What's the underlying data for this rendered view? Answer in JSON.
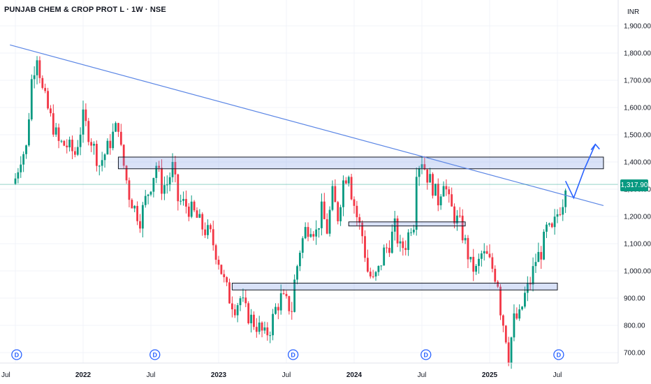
{
  "header": {
    "title": "PUNJAB CHEM & CROP PROT L · 1W · NSE"
  },
  "chart_data": {
    "type": "candlestick",
    "currency": "INR",
    "current_price": "1,317.90",
    "y_ticks": [
      "1,900.00",
      "1,800.00",
      "1,700.00",
      "1,600.00",
      "1,500.00",
      "1,400.00",
      "1,300.00",
      "1,200.00",
      "1,100.00",
      "1,000.00",
      "900.00",
      "800.00",
      "700.00"
    ],
    "y_values": [
      1900,
      1800,
      1700,
      1600,
      1500,
      1400,
      1300,
      1200,
      1100,
      1000,
      900,
      800,
      700
    ],
    "x_ticks": [
      {
        "label": "Jul",
        "index": 0
      },
      {
        "label": "2022",
        "index": 25
      },
      {
        "label": "Jul",
        "index": 50
      },
      {
        "label": "2023",
        "index": 75
      },
      {
        "label": "Jul",
        "index": 100
      },
      {
        "label": "2024",
        "index": 125
      },
      {
        "label": "Jul",
        "index": 150
      },
      {
        "label": "2025",
        "index": 175
      },
      {
        "label": "Jul",
        "index": 200
      }
    ],
    "dividend_markers": [
      {
        "label": "D",
        "index": 1
      },
      {
        "label": "D",
        "index": 52
      },
      {
        "label": "D",
        "index": 103
      },
      {
        "label": "D",
        "index": 152
      },
      {
        "label": "D",
        "index": 201
      }
    ],
    "anchors": [
      [
        0,
        1340
      ],
      [
        2,
        1420
      ],
      [
        4,
        1450
      ],
      [
        6,
        1700
      ],
      [
        8,
        1800
      ],
      [
        10,
        1660
      ],
      [
        13,
        1560
      ],
      [
        16,
        1470
      ],
      [
        19,
        1460
      ],
      [
        22,
        1430
      ],
      [
        25,
        1560
      ],
      [
        28,
        1480
      ],
      [
        31,
        1390
      ],
      [
        34,
        1450
      ],
      [
        36,
        1500
      ],
      [
        38,
        1540
      ],
      [
        39,
        1440
      ],
      [
        42,
        1280
      ],
      [
        44,
        1230
      ],
      [
        46,
        1190
      ],
      [
        48,
        1260
      ],
      [
        50,
        1320
      ],
      [
        52,
        1390
      ],
      [
        54,
        1310
      ],
      [
        56,
        1320
      ],
      [
        58,
        1380
      ],
      [
        60,
        1260
      ],
      [
        63,
        1240
      ],
      [
        66,
        1210
      ],
      [
        69,
        1160
      ],
      [
        72,
        1130
      ],
      [
        75,
        1040
      ],
      [
        77,
        960
      ],
      [
        79,
        900
      ],
      [
        81,
        870
      ],
      [
        83,
        900
      ],
      [
        85,
        850
      ],
      [
        88,
        810
      ],
      [
        90,
        790
      ],
      [
        92,
        760
      ],
      [
        94,
        790
      ],
      [
        96,
        860
      ],
      [
        98,
        900
      ],
      [
        100,
        880
      ],
      [
        102,
        860
      ],
      [
        103,
        960
      ],
      [
        105,
        1080
      ],
      [
        107,
        1150
      ],
      [
        109,
        1170
      ],
      [
        111,
        1140
      ],
      [
        113,
        1220
      ],
      [
        115,
        1150
      ],
      [
        117,
        1280
      ],
      [
        119,
        1200
      ],
      [
        121,
        1330
      ],
      [
        123,
        1370
      ],
      [
        124,
        1290
      ],
      [
        126,
        1200
      ],
      [
        128,
        1130
      ],
      [
        130,
        1000
      ],
      [
        132,
        960
      ],
      [
        134,
        1000
      ],
      [
        136,
        1070
      ],
      [
        138,
        1100
      ],
      [
        140,
        1160
      ],
      [
        142,
        1080
      ],
      [
        144,
        1100
      ],
      [
        146,
        1170
      ],
      [
        147,
        1180
      ],
      [
        148,
        1380
      ],
      [
        150,
        1410
      ],
      [
        152,
        1350
      ],
      [
        154,
        1310
      ],
      [
        156,
        1260
      ],
      [
        158,
        1340
      ],
      [
        160,
        1250
      ],
      [
        162,
        1200
      ],
      [
        164,
        1170
      ],
      [
        166,
        1100
      ],
      [
        168,
        1020
      ],
      [
        170,
        1000
      ],
      [
        172,
        1060
      ],
      [
        174,
        1050
      ],
      [
        176,
        1010
      ],
      [
        178,
        960
      ],
      [
        179,
        860
      ],
      [
        181,
        760
      ],
      [
        182,
        690
      ],
      [
        184,
        820
      ],
      [
        186,
        830
      ],
      [
        188,
        910
      ],
      [
        190,
        960
      ],
      [
        192,
        1040
      ],
      [
        194,
        1070
      ],
      [
        196,
        1150
      ],
      [
        198,
        1140
      ],
      [
        200,
        1210
      ],
      [
        202,
        1260
      ],
      [
        203,
        1330
      ]
    ],
    "trendline": {
      "from": {
        "index": -2,
        "price": 1830
      },
      "to": {
        "index": 217,
        "price": 1240
      }
    },
    "zones": [
      {
        "from": 38,
        "to": 217,
        "low": 1375,
        "high": 1418
      },
      {
        "from": 123,
        "to": 166,
        "low": 1165,
        "high": 1180
      },
      {
        "from": 80,
        "to": 200,
        "low": 930,
        "high": 955
      }
    ],
    "current_price_value": 1317.9,
    "projection": [
      {
        "index": 203,
        "price": 1330
      },
      {
        "index": 206,
        "price": 1268
      },
      {
        "index": 210,
        "price": 1375
      },
      {
        "index": 214,
        "price": 1465
      },
      {
        "index": 215,
        "price": 1445
      }
    ]
  }
}
